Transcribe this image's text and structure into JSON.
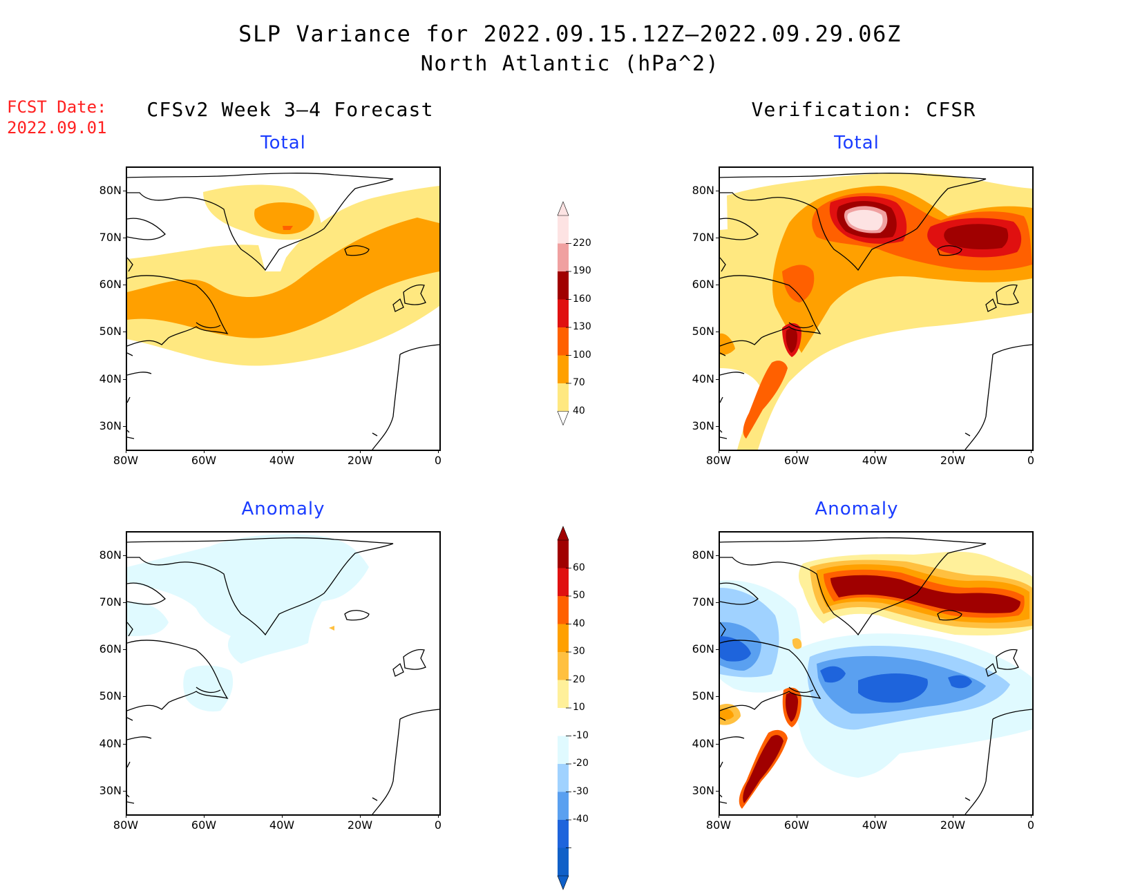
{
  "header": {
    "title_line1": "SLP Variance for 2022.09.15.12Z—2022.09.29.06Z",
    "title_line2": "North Atlantic (hPa^2)",
    "fcst_label": "FCST Date:",
    "fcst_date": "2022.09.01"
  },
  "columns": {
    "left_title": "CFSv2 Week 3—4 Forecast",
    "right_title": "Verification: CFSR"
  },
  "panels": {
    "top_left_title": "Total",
    "top_right_title": "Total",
    "bottom_left_title": "Anomaly",
    "bottom_right_title": "Anomaly"
  },
  "axes": {
    "lat_labels": [
      "80N",
      "70N",
      "60N",
      "50N",
      "40N",
      "30N"
    ],
    "lon_labels": [
      "80W",
      "60W",
      "40W",
      "20W",
      "0"
    ]
  },
  "colorbars": {
    "total": {
      "labels": [
        "220",
        "190",
        "160",
        "130",
        "100",
        "70",
        "40"
      ],
      "colors": [
        "#fde3e3",
        "#f0a0a0",
        "#a00000",
        "#e01010",
        "#ff6000",
        "#ffa000",
        "#ffe880"
      ]
    },
    "anomaly": {
      "labels": [
        "60",
        "50",
        "40",
        "30",
        "20",
        "10",
        "-10",
        "-20",
        "-30",
        "-40"
      ],
      "colors": [
        "#a00000",
        "#e01010",
        "#ff6000",
        "#ffa000",
        "#ffc040",
        "#fff09a",
        "#ffffff",
        "#e0faff",
        "#a0d2ff",
        "#5aa0f0",
        "#1e64dc",
        "#1060c8"
      ]
    }
  },
  "chart_data": [
    {
      "type": "heatmap",
      "title": "Total",
      "panel": "CFSv2 Week 3—4 Forecast",
      "units": "hPa^2",
      "xlim": [
        -80,
        0
      ],
      "ylim": [
        25,
        85
      ],
      "levels": [
        40,
        70,
        100,
        130,
        160,
        190,
        220
      ]
    },
    {
      "type": "heatmap",
      "title": "Total",
      "panel": "Verification: CFSR",
      "units": "hPa^2",
      "xlim": [
        -80,
        0
      ],
      "ylim": [
        25,
        85
      ],
      "levels": [
        40,
        70,
        100,
        130,
        160,
        190,
        220
      ]
    },
    {
      "type": "heatmap",
      "title": "Anomaly",
      "panel": "CFSv2 Week 3—4 Forecast",
      "units": "hPa^2",
      "xlim": [
        -80,
        0
      ],
      "ylim": [
        25,
        85
      ],
      "levels": [
        -40,
        -30,
        -20,
        -10,
        10,
        20,
        30,
        40,
        50,
        60
      ]
    },
    {
      "type": "heatmap",
      "title": "Anomaly",
      "panel": "Verification: CFSR",
      "units": "hPa^2",
      "xlim": [
        -80,
        0
      ],
      "ylim": [
        25,
        85
      ],
      "levels": [
        -40,
        -30,
        -20,
        -10,
        10,
        20,
        30,
        40,
        50,
        60
      ]
    }
  ]
}
